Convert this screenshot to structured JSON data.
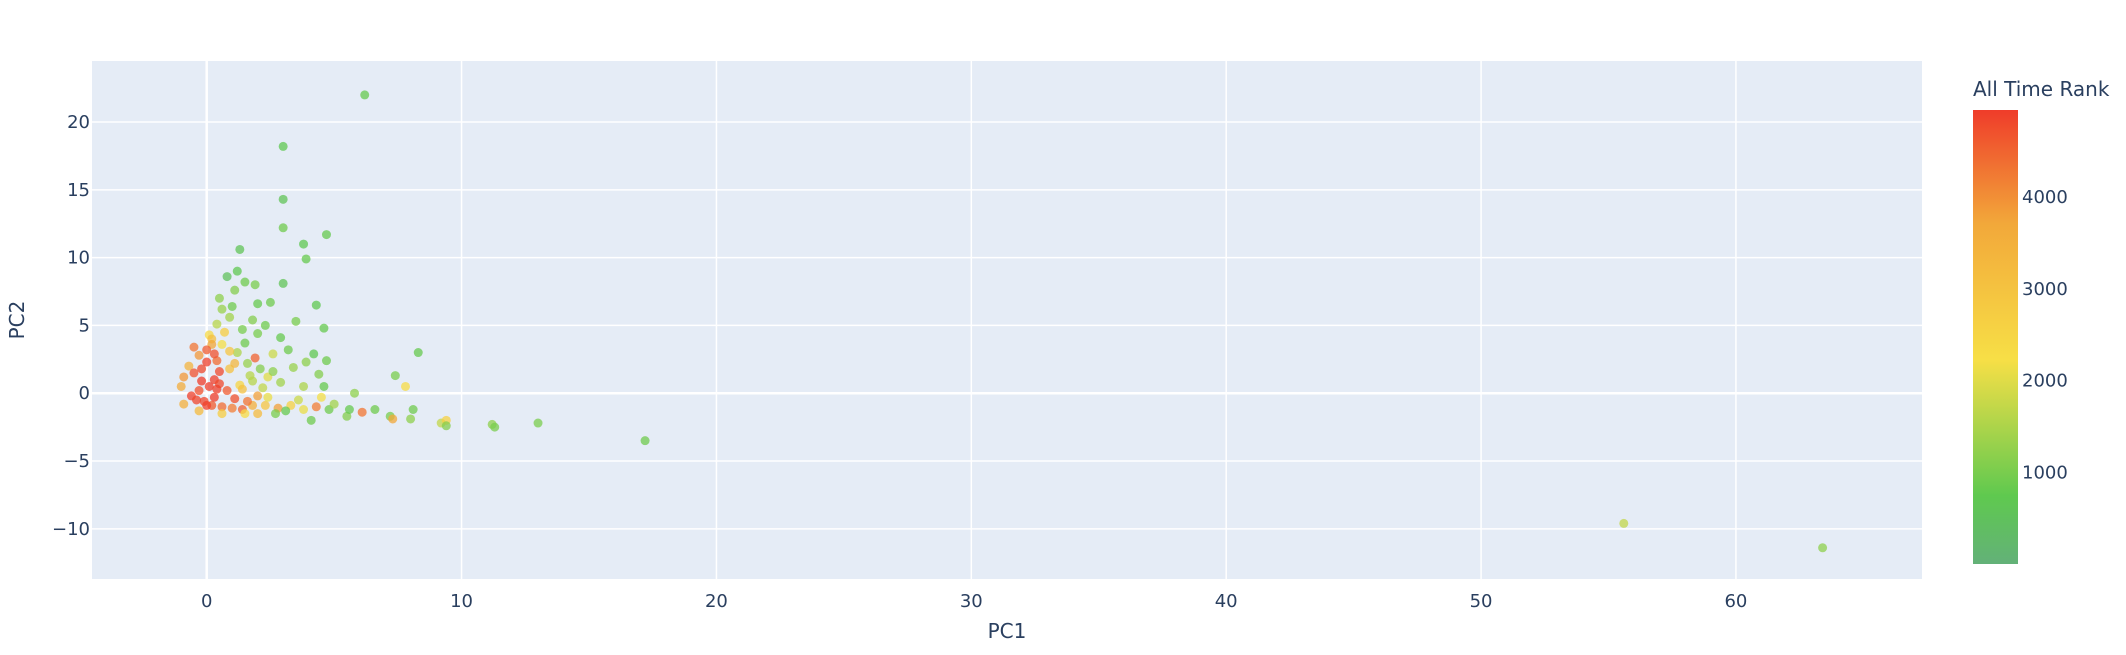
{
  "chart_data": {
    "type": "scatter",
    "title": "",
    "xlabel": "PC1",
    "ylabel": "PC2",
    "xlim": [
      -4.5,
      67.3
    ],
    "ylim": [
      -13.7,
      24.5
    ],
    "x_ticks": [
      0,
      10,
      20,
      30,
      40,
      50,
      60
    ],
    "y_ticks": [
      -10,
      -5,
      0,
      5,
      10,
      15,
      20
    ],
    "x_tick_labels": [
      "0",
      "10",
      "20",
      "30",
      "40",
      "50",
      "60"
    ],
    "y_tick_labels": [
      "−10",
      "−5",
      "0",
      "5",
      "10",
      "15",
      "20"
    ],
    "grid": true,
    "plot_background": "#e5ecf6",
    "marker_opacity": 0.75,
    "colorbar": {
      "title": "All Time Rank",
      "range": [
        1,
        4950
      ],
      "ticks": [
        1000,
        2000,
        3000,
        4000
      ],
      "tick_labels": [
        "1000",
        "2000",
        "3000",
        "4000"
      ],
      "colorscale": [
        [
          0.0,
          "#63b178"
        ],
        [
          0.15,
          "#5fc94f"
        ],
        [
          0.45,
          "#f7df46"
        ],
        [
          0.75,
          "#f2a83a"
        ],
        [
          1.0,
          "#ef3c2a"
        ]
      ]
    },
    "points": [
      [
        6.2,
        22.0,
        800
      ],
      [
        3.0,
        18.2,
        700
      ],
      [
        3.0,
        14.3,
        600
      ],
      [
        3.0,
        12.2,
        900
      ],
      [
        4.7,
        11.7,
        800
      ],
      [
        1.3,
        10.6,
        600
      ],
      [
        3.8,
        11.0,
        700
      ],
      [
        3.9,
        9.9,
        800
      ],
      [
        0.8,
        8.6,
        500
      ],
      [
        1.2,
        9.0,
        700
      ],
      [
        1.5,
        8.2,
        900
      ],
      [
        1.9,
        8.0,
        1000
      ],
      [
        3.0,
        8.1,
        600
      ],
      [
        1.1,
        7.6,
        1100
      ],
      [
        0.5,
        7.0,
        1200
      ],
      [
        2.0,
        6.6,
        800
      ],
      [
        2.5,
        6.7,
        900
      ],
      [
        4.3,
        6.5,
        700
      ],
      [
        0.6,
        6.2,
        1300
      ],
      [
        1.0,
        6.4,
        900
      ],
      [
        3.5,
        5.3,
        1000
      ],
      [
        4.6,
        4.8,
        800
      ],
      [
        1.8,
        5.4,
        1100
      ],
      [
        2.3,
        5.0,
        900
      ],
      [
        0.4,
        5.1,
        1600
      ],
      [
        0.9,
        5.6,
        1400
      ],
      [
        1.4,
        4.7,
        1000
      ],
      [
        2.9,
        4.1,
        800
      ],
      [
        3.2,
        3.2,
        900
      ],
      [
        2.6,
        2.9,
        1800
      ],
      [
        4.2,
        2.9,
        700
      ],
      [
        8.3,
        3.0,
        800
      ],
      [
        3.9,
        2.3,
        1200
      ],
      [
        4.7,
        2.4,
        900
      ],
      [
        7.4,
        1.3,
        1000
      ],
      [
        7.8,
        0.5,
        2300
      ],
      [
        4.4,
        1.4,
        1100
      ],
      [
        4.6,
        0.5,
        800
      ],
      [
        5.8,
        0.0,
        1200
      ],
      [
        3.8,
        0.5,
        1500
      ],
      [
        0.1,
        4.3,
        2400
      ],
      [
        0.2,
        4.0,
        3100
      ],
      [
        0.7,
        4.5,
        2700
      ],
      [
        1.9,
        2.6,
        4500
      ],
      [
        0.2,
        3.6,
        3700
      ],
      [
        -0.5,
        3.4,
        4300
      ],
      [
        -0.3,
        2.8,
        3900
      ],
      [
        0.0,
        3.2,
        4600
      ],
      [
        0.6,
        3.6,
        2200
      ],
      [
        1.2,
        3.0,
        1500
      ],
      [
        1.6,
        2.2,
        1300
      ],
      [
        2.1,
        1.8,
        1100
      ],
      [
        1.7,
        1.3,
        1600
      ],
      [
        2.4,
        1.2,
        2000
      ],
      [
        2.9,
        0.8,
        1400
      ],
      [
        2.2,
        0.4,
        1700
      ],
      [
        1.3,
        0.6,
        2500
      ],
      [
        0.9,
        1.8,
        3000
      ],
      [
        0.4,
        2.4,
        4400
      ],
      [
        0.5,
        1.6,
        4800
      ],
      [
        0.3,
        1.0,
        4900
      ],
      [
        0.1,
        0.5,
        4950
      ],
      [
        -0.3,
        0.2,
        4700
      ],
      [
        -0.6,
        -0.2,
        4900
      ],
      [
        -0.1,
        -0.6,
        4850
      ],
      [
        0.2,
        -0.9,
        4600
      ],
      [
        0.6,
        -1.0,
        4400
      ],
      [
        1.0,
        -1.1,
        4200
      ],
      [
        1.4,
        -1.2,
        4500
      ],
      [
        1.8,
        -0.9,
        3500
      ],
      [
        2.3,
        -0.9,
        2900
      ],
      [
        2.8,
        -1.1,
        3800
      ],
      [
        3.3,
        -0.9,
        2600
      ],
      [
        3.8,
        -1.2,
        2100
      ],
      [
        4.3,
        -1.0,
        4200
      ],
      [
        4.8,
        -1.2,
        900
      ],
      [
        5.5,
        -1.7,
        1100
      ],
      [
        5.6,
        -1.2,
        800
      ],
      [
        6.1,
        -1.4,
        4300
      ],
      [
        6.6,
        -1.2,
        900
      ],
      [
        7.2,
        -1.7,
        1000
      ],
      [
        7.3,
        -1.9,
        3700
      ],
      [
        8.1,
        -1.2,
        900
      ],
      [
        8.0,
        -1.9,
        1200
      ],
      [
        9.2,
        -2.2,
        1700
      ],
      [
        9.4,
        -2.0,
        2600
      ],
      [
        9.4,
        -2.4,
        1100
      ],
      [
        11.2,
        -2.3,
        1200
      ],
      [
        11.3,
        -2.5,
        1000
      ],
      [
        13.0,
        -2.2,
        1000
      ],
      [
        17.2,
        -3.5,
        900
      ],
      [
        55.6,
        -9.6,
        1700
      ],
      [
        63.4,
        -11.4,
        1200
      ],
      [
        2.4,
        -0.3,
        2100
      ],
      [
        3.1,
        -1.3,
        800
      ],
      [
        4.1,
        -2.0,
        900
      ],
      [
        2.7,
        -1.5,
        1000
      ],
      [
        2.0,
        -1.5,
        3200
      ],
      [
        1.5,
        -1.5,
        2300
      ],
      [
        0.6,
        -1.5,
        2700
      ],
      [
        -0.3,
        -1.3,
        3200
      ],
      [
        -0.9,
        -0.8,
        3500
      ],
      [
        -1.0,
        0.5,
        3600
      ],
      [
        -0.9,
        1.2,
        3900
      ],
      [
        -0.7,
        2.0,
        3400
      ],
      [
        -0.5,
        1.5,
        4700
      ],
      [
        -0.2,
        1.8,
        4800
      ],
      [
        0.0,
        2.3,
        4900
      ],
      [
        0.3,
        2.9,
        4700
      ],
      [
        0.5,
        0.7,
        4800
      ],
      [
        0.8,
        0.2,
        4600
      ],
      [
        1.1,
        -0.4,
        4700
      ],
      [
        1.6,
        -0.6,
        4300
      ],
      [
        2.0,
        -0.2,
        3800
      ],
      [
        1.4,
        0.3,
        3000
      ],
      [
        1.8,
        0.9,
        1600
      ],
      [
        2.6,
        1.6,
        1200
      ],
      [
        3.4,
        1.9,
        1300
      ],
      [
        2.0,
        4.4,
        1000
      ],
      [
        1.5,
        3.7,
        900
      ],
      [
        0.9,
        3.1,
        2900
      ],
      [
        1.1,
        2.2,
        3300
      ],
      [
        0.3,
        -0.3,
        4950
      ],
      [
        0.0,
        -0.9,
        4900
      ],
      [
        -0.2,
        0.9,
        4950
      ],
      [
        -0.4,
        -0.5,
        4850
      ],
      [
        0.4,
        0.3,
        4900
      ],
      [
        3.6,
        -0.5,
        1800
      ],
      [
        4.5,
        -0.3,
        2200
      ],
      [
        5.0,
        -0.8,
        1400
      ]
    ]
  }
}
